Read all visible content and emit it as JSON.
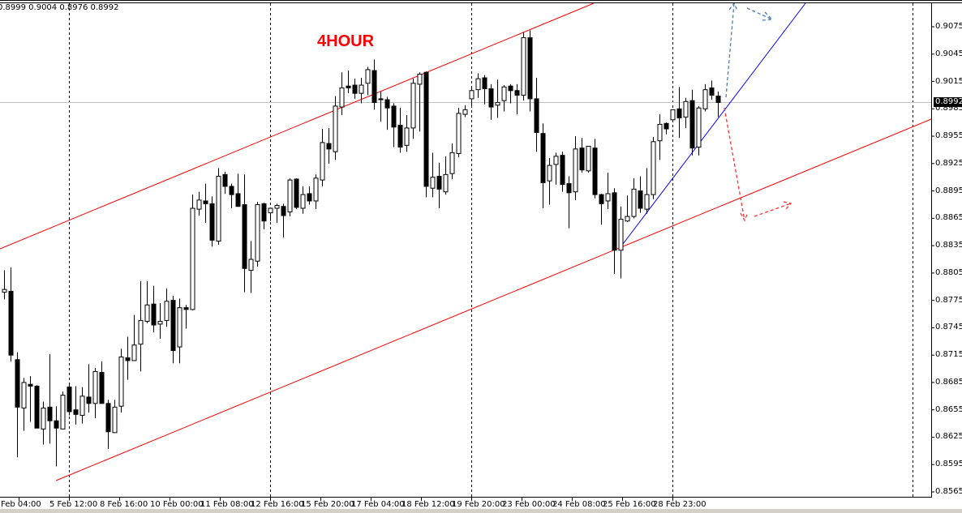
{
  "header": {
    "ohlc": "0.8999 0.9004 0.8976 0.8992",
    "timeframe_label": "4HOUR"
  },
  "colors": {
    "up_body": "#ffffff",
    "down_body": "#000000",
    "channel": "#ff0000",
    "trendline": "#0000ff",
    "bull_arrow": "#4a7fb0",
    "bear_arrow": "#ff3030",
    "price_line": "#c0c0c0"
  },
  "current_price": "0.8992",
  "chart_data": {
    "type": "candlestick",
    "title": "",
    "ylim": [
      0.8565,
      0.9075
    ],
    "y_ticks": [
      "0.9075",
      "0.9045",
      "0.9015",
      "0.8985",
      "0.8955",
      "0.8925",
      "0.8895",
      "0.8865",
      "0.8835",
      "0.8805",
      "0.8775",
      "0.8745",
      "0.8715",
      "0.8685",
      "0.8655",
      "0.8625",
      "0.8595",
      "0.8565"
    ],
    "x_labels": [
      "Feb 04:00",
      "5 Feb 12:00",
      "8 Feb 16:00",
      "10 Feb 00:00",
      "11 Feb 08:00",
      "12 Feb 16:00",
      "15 Feb 20:00",
      "17 Feb 04:00",
      "18 Feb 12:00",
      "19 Feb 20:00",
      "23 Feb 00:00",
      "24 Feb 08:00",
      "25 Feb 16:00",
      "28 Feb 23:00"
    ],
    "grid": "vertical dashed separators",
    "ohlc": [
      [
        0.8784,
        0.8808,
        0.8776,
        0.8787
      ],
      [
        0.8785,
        0.8811,
        0.8708,
        0.8715
      ],
      [
        0.871,
        0.8718,
        0.8603,
        0.8658
      ],
      [
        0.8657,
        0.869,
        0.8632,
        0.8685
      ],
      [
        0.8683,
        0.8692,
        0.8642,
        0.8681
      ],
      [
        0.8681,
        0.8682,
        0.8635,
        0.8635
      ],
      [
        0.8634,
        0.8664,
        0.8617,
        0.8657
      ],
      [
        0.8658,
        0.8716,
        0.8618,
        0.8643
      ],
      [
        0.8643,
        0.8659,
        0.8593,
        0.8635
      ],
      [
        0.8634,
        0.8675,
        0.8634,
        0.8671
      ],
      [
        0.868,
        0.8684,
        0.8649,
        0.8653
      ],
      [
        0.8655,
        0.8681,
        0.8639,
        0.865
      ],
      [
        0.8649,
        0.868,
        0.864,
        0.867
      ],
      [
        0.8669,
        0.8705,
        0.8652,
        0.8662
      ],
      [
        0.8662,
        0.8701,
        0.8646,
        0.8697
      ],
      [
        0.8696,
        0.8708,
        0.8662,
        0.8662
      ],
      [
        0.8662,
        0.8666,
        0.8612,
        0.8631
      ],
      [
        0.863,
        0.8666,
        0.863,
        0.8658
      ],
      [
        0.8659,
        0.8722,
        0.8652,
        0.8713
      ],
      [
        0.8712,
        0.8735,
        0.8688,
        0.8709
      ],
      [
        0.8709,
        0.8759,
        0.8709,
        0.8726
      ],
      [
        0.8727,
        0.8796,
        0.8697,
        0.8753
      ],
      [
        0.8752,
        0.8796,
        0.875,
        0.877
      ],
      [
        0.8771,
        0.8791,
        0.874,
        0.8748
      ],
      [
        0.8749,
        0.8772,
        0.8733,
        0.8752
      ],
      [
        0.8753,
        0.8788,
        0.8746,
        0.8774
      ],
      [
        0.8775,
        0.878,
        0.8706,
        0.872
      ],
      [
        0.8724,
        0.8777,
        0.8706,
        0.8767
      ],
      [
        0.8767,
        0.877,
        0.8744,
        0.8765
      ],
      [
        0.8765,
        0.8891,
        0.8764,
        0.8876
      ],
      [
        0.8875,
        0.8894,
        0.8868,
        0.8885
      ],
      [
        0.8884,
        0.8903,
        0.886,
        0.8881
      ],
      [
        0.8881,
        0.8889,
        0.8834,
        0.8841
      ],
      [
        0.884,
        0.892,
        0.8836,
        0.8911
      ],
      [
        0.8913,
        0.8916,
        0.8892,
        0.89
      ],
      [
        0.89,
        0.8903,
        0.8876,
        0.8891
      ],
      [
        0.8892,
        0.8914,
        0.8879,
        0.8878
      ],
      [
        0.888,
        0.8913,
        0.8784,
        0.881
      ],
      [
        0.8808,
        0.884,
        0.8783,
        0.882
      ],
      [
        0.8818,
        0.8883,
        0.8812,
        0.888
      ],
      [
        0.8881,
        0.8882,
        0.8853,
        0.8862
      ],
      [
        0.8871,
        0.8876,
        0.8862,
        0.8876
      ],
      [
        0.8876,
        0.8881,
        0.886,
        0.8879
      ],
      [
        0.8878,
        0.8881,
        0.8844,
        0.8868
      ],
      [
        0.8872,
        0.8909,
        0.8867,
        0.8907
      ],
      [
        0.8908,
        0.8909,
        0.8875,
        0.8877
      ],
      [
        0.8876,
        0.89,
        0.887,
        0.8891
      ],
      [
        0.8892,
        0.89,
        0.888,
        0.8884
      ],
      [
        0.8884,
        0.8913,
        0.8875,
        0.8909
      ],
      [
        0.8907,
        0.8963,
        0.89,
        0.8948
      ],
      [
        0.8947,
        0.8964,
        0.8925,
        0.8941
      ],
      [
        0.8938,
        0.8999,
        0.8929,
        0.8988
      ],
      [
        0.8987,
        0.9025,
        0.8978,
        0.9008
      ],
      [
        0.901,
        0.9027,
        0.9002,
        0.9008
      ],
      [
        0.9011,
        0.9018,
        0.8996,
        0.9002
      ],
      [
        0.9002,
        0.9019,
        0.8991,
        0.9011
      ],
      [
        0.9013,
        0.9031,
        0.9,
        0.9028
      ],
      [
        0.9027,
        0.9039,
        0.8984,
        0.8992
      ],
      [
        0.8996,
        0.9004,
        0.8971,
        0.8995
      ],
      [
        0.8995,
        0.8998,
        0.8962,
        0.8986
      ],
      [
        0.8988,
        0.8991,
        0.8943,
        0.8965
      ],
      [
        0.8967,
        0.8986,
        0.8937,
        0.8943
      ],
      [
        0.8945,
        0.8978,
        0.8938,
        0.8964
      ],
      [
        0.8964,
        0.9018,
        0.8952,
        0.9013
      ],
      [
        0.9012,
        0.9025,
        0.896,
        0.9023
      ],
      [
        0.9025,
        0.9026,
        0.8888,
        0.89
      ],
      [
        0.8898,
        0.8937,
        0.8888,
        0.891
      ],
      [
        0.8911,
        0.8926,
        0.8876,
        0.8897
      ],
      [
        0.8894,
        0.8933,
        0.8891,
        0.8913
      ],
      [
        0.8914,
        0.8947,
        0.8908,
        0.8937
      ],
      [
        0.8936,
        0.8986,
        0.8932,
        0.898
      ],
      [
        0.8979,
        0.8989,
        0.8976,
        0.8984
      ],
      [
        0.8996,
        0.9009,
        0.8986,
        0.9005
      ],
      [
        0.9006,
        0.9024,
        0.8997,
        0.9018
      ],
      [
        0.9019,
        0.9022,
        0.899,
        0.9007
      ],
      [
        0.9007,
        0.9012,
        0.8973,
        0.8987
      ],
      [
        0.8989,
        0.9017,
        0.8975,
        0.8992
      ],
      [
        0.8994,
        0.9011,
        0.8982,
        0.9009
      ],
      [
        0.901,
        0.9012,
        0.8991,
        0.9005
      ],
      [
        0.9005,
        0.9012,
        0.8979,
        0.9
      ],
      [
        0.9,
        0.9069,
        0.8994,
        0.9063
      ],
      [
        0.9063,
        0.9071,
        0.8982,
        0.8996
      ],
      [
        0.8996,
        0.9019,
        0.8938,
        0.8959
      ],
      [
        0.8958,
        0.8969,
        0.8876,
        0.8904
      ],
      [
        0.8906,
        0.8931,
        0.888,
        0.8923
      ],
      [
        0.8924,
        0.8937,
        0.8902,
        0.8933
      ],
      [
        0.8934,
        0.8938,
        0.8894,
        0.8902
      ],
      [
        0.8903,
        0.8911,
        0.8854,
        0.8893
      ],
      [
        0.8894,
        0.8955,
        0.8885,
        0.8941
      ],
      [
        0.8942,
        0.8953,
        0.8915,
        0.8918
      ],
      [
        0.8917,
        0.8944,
        0.8915,
        0.8944
      ],
      [
        0.8942,
        0.8952,
        0.8887,
        0.8891
      ],
      [
        0.8891,
        0.8892,
        0.8858,
        0.8881
      ],
      [
        0.8884,
        0.8915,
        0.8875,
        0.8892
      ],
      [
        0.8893,
        0.8898,
        0.8804,
        0.883
      ],
      [
        0.883,
        0.8878,
        0.8799,
        0.8864
      ],
      [
        0.8862,
        0.889,
        0.8861,
        0.8867
      ],
      [
        0.8867,
        0.8909,
        0.8865,
        0.8897
      ],
      [
        0.8895,
        0.8911,
        0.8871,
        0.8876
      ],
      [
        0.8875,
        0.892,
        0.887,
        0.8891
      ],
      [
        0.8891,
        0.8954,
        0.8886,
        0.8949
      ],
      [
        0.895,
        0.8979,
        0.8929,
        0.8968
      ],
      [
        0.8969,
        0.897,
        0.8957,
        0.8963
      ],
      [
        0.8973,
        0.8984,
        0.8973,
        0.8984
      ],
      [
        0.8985,
        0.9009,
        0.8953,
        0.8975
      ],
      [
        0.8976,
        0.8997,
        0.8964,
        0.8993
      ],
      [
        0.8994,
        0.9006,
        0.8934,
        0.8942
      ],
      [
        0.8943,
        0.8988,
        0.8934,
        0.8986
      ],
      [
        0.8985,
        0.9012,
        0.8982,
        0.9006
      ],
      [
        0.9008,
        0.9016,
        0.8995,
        0.9
      ],
      [
        0.8999,
        0.9004,
        0.8976,
        0.8992
      ]
    ]
  }
}
